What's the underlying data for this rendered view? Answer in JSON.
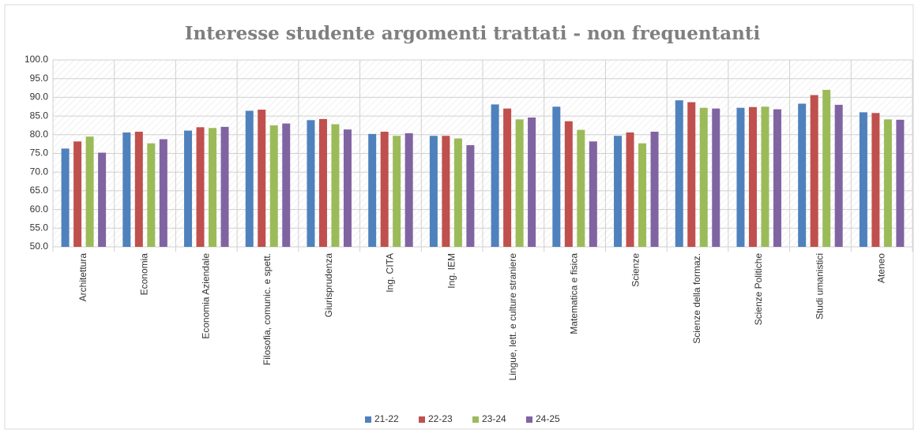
{
  "chart_data": {
    "type": "bar",
    "title": "Interesse studente argomenti trattati - non frequentanti",
    "categories": [
      "Architettura",
      "Economia",
      "Economia Aziendale",
      "Filosofia, comunic. e spett.",
      "Giurisprudenza",
      "Ing. CITA",
      "Ing. IEM",
      "Lingue, lett. e culture straniere",
      "Matematica e fisica",
      "Scienze",
      "Scienze della formaz.",
      "Scienze Politiche",
      "Studi umanistici",
      "Ateneo"
    ],
    "series": [
      {
        "name": "21-22",
        "color": "#4f81bd",
        "values": [
          76.3,
          80.6,
          81.1,
          86.4,
          83.9,
          80.2,
          79.7,
          88.1,
          87.5,
          79.7,
          89.2,
          87.2,
          88.3,
          86.0
        ]
      },
      {
        "name": "22-23",
        "color": "#c0504d",
        "values": [
          78.2,
          80.8,
          82.0,
          86.7,
          84.2,
          80.8,
          79.7,
          87.0,
          83.6,
          80.6,
          88.7,
          87.4,
          90.6,
          85.8
        ]
      },
      {
        "name": "23-24",
        "color": "#9bbb59",
        "values": [
          79.5,
          77.7,
          81.8,
          82.5,
          82.8,
          79.7,
          79.0,
          84.1,
          81.3,
          77.7,
          87.2,
          87.5,
          92.0,
          84.1
        ]
      },
      {
        "name": "24-25",
        "color": "#8064a2",
        "values": [
          75.2,
          78.8,
          82.1,
          83.0,
          81.4,
          80.4,
          77.2,
          84.6,
          78.2,
          80.8,
          87.0,
          86.8,
          88.0,
          84.0
        ]
      }
    ],
    "ylim": [
      50,
      100
    ],
    "yticks": [
      {
        "value": 50,
        "label": "50.0"
      },
      {
        "value": 55,
        "label": "55.0"
      },
      {
        "value": 60,
        "label": "60.0"
      },
      {
        "value": 65,
        "label": "65.0"
      },
      {
        "value": 70,
        "label": "70.0"
      },
      {
        "value": 75,
        "label": "75.0"
      },
      {
        "value": 80,
        "label": "80.0"
      },
      {
        "value": 85,
        "label": "85.0"
      },
      {
        "value": 90,
        "label": "90.0"
      },
      {
        "value": 95,
        "label": "95.0"
      },
      {
        "value": 100,
        "label": "100.0"
      }
    ],
    "grid": true,
    "legend": "bottom"
  }
}
